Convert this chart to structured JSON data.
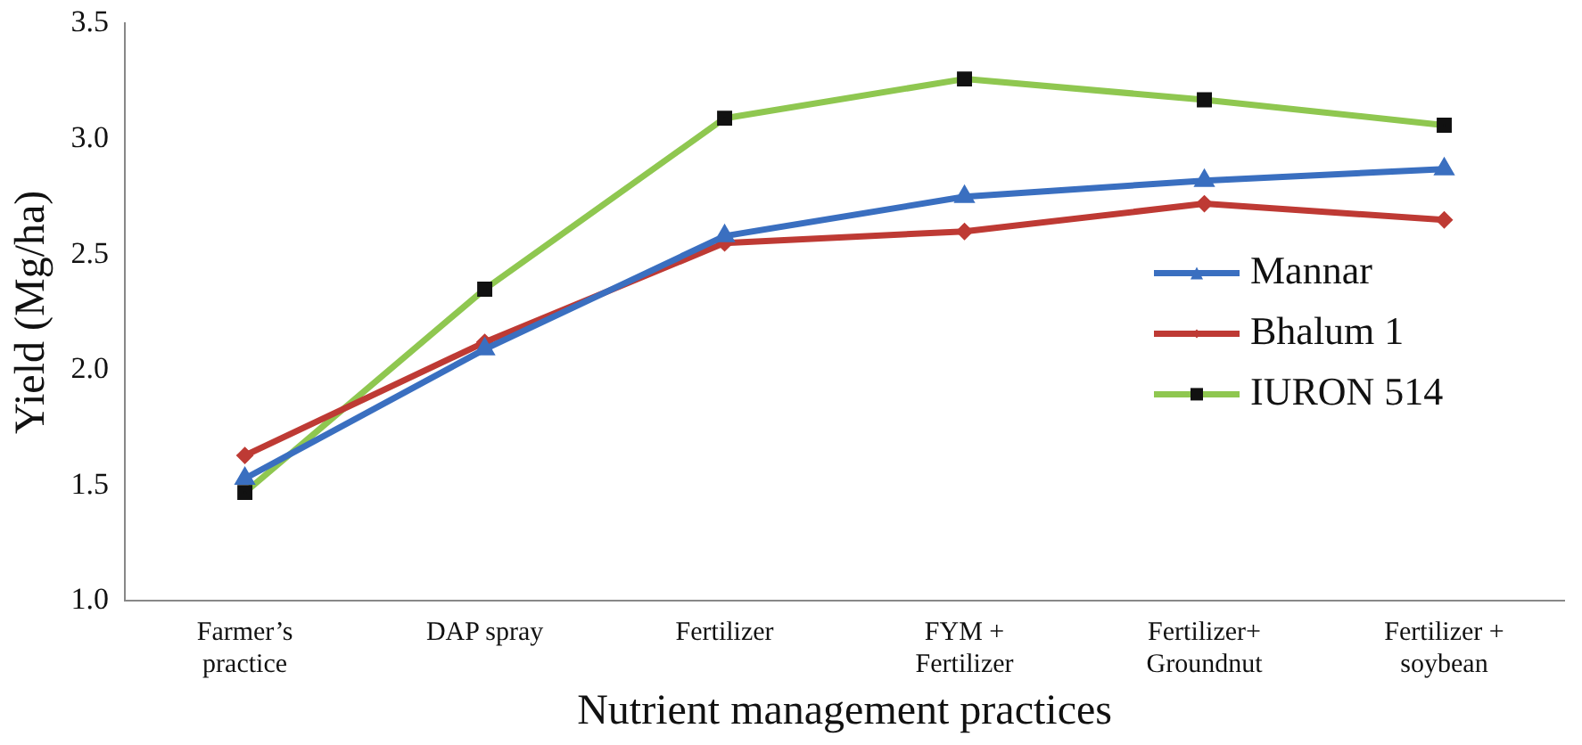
{
  "chart_data": {
    "type": "line",
    "xlabel": "Nutrient management practices",
    "ylabel": "Yield (Mg/ha)",
    "categories": [
      "Farmer’s\npractice",
      "DAP spray",
      "Fertilizer",
      "FYM +\nFertilizer",
      "Fertilizer+\nGroundnut",
      "Fertilizer +\nsoybean"
    ],
    "series": [
      {
        "name": "Mannar",
        "color": "#3a6fc0",
        "marker": "triangle",
        "values": [
          1.53,
          2.09,
          2.58,
          2.75,
          2.82,
          2.87
        ]
      },
      {
        "name": "Bhalum 1",
        "color": "#be3a34",
        "marker": "diamond",
        "values": [
          1.63,
          2.12,
          2.55,
          2.6,
          2.72,
          2.65
        ]
      },
      {
        "name": "IURON 514",
        "color": "#8fc750",
        "marker": "square",
        "values": [
          1.47,
          2.35,
          3.09,
          3.26,
          3.17,
          3.06
        ]
      }
    ],
    "ylim": [
      1.0,
      3.5
    ],
    "yticks": [
      {
        "value": 1.0,
        "label": "1.0"
      },
      {
        "value": 1.5,
        "label": "1.5"
      },
      {
        "value": 2.0,
        "label": "2.0"
      },
      {
        "value": 2.5,
        "label": "2.5"
      },
      {
        "value": 3.0,
        "label": "3.0"
      },
      {
        "value": 3.5,
        "label": "3.5"
      }
    ],
    "grid": false,
    "legend": "right",
    "line_style": "solid"
  }
}
